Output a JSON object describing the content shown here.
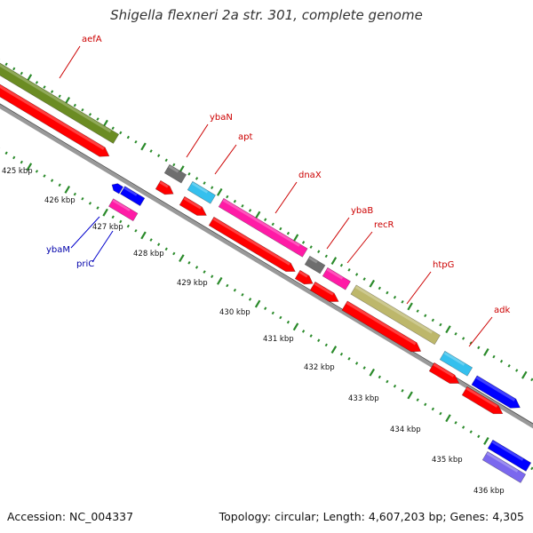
{
  "title": "Shigella flexneri 2a str. 301, complete genome",
  "footer": {
    "accession": "Accession: NC_004337",
    "summary": "Topology: circular; Length: 4,607,203 bp; Genes: 4,305"
  },
  "colors": {
    "backbone": "#999999",
    "tick": "#2a8a2a",
    "red": "#ff0000",
    "olive": "#6b8c23",
    "gray": "#6e6e6e",
    "cyan": "#35c0ee",
    "magenta": "#ff1ba6",
    "khaki": "#bdb76b",
    "blue": "#0000ff",
    "slate": "#7b68ee",
    "label_forward": "#cc0000",
    "label_reverse": "#0000aa"
  },
  "kbp_labels": [
    {
      "kbp": 425,
      "text": "425 kbp"
    },
    {
      "kbp": 426,
      "text": "426 kbp"
    },
    {
      "kbp": 427,
      "text": "427 kbp"
    },
    {
      "kbp": 428,
      "text": "428 kbp"
    },
    {
      "kbp": 429,
      "text": "429 kbp"
    },
    {
      "kbp": 430,
      "text": "430 kbp"
    },
    {
      "kbp": 431,
      "text": "431 kbp"
    },
    {
      "kbp": 432,
      "text": "432 kbp"
    },
    {
      "kbp": 433,
      "text": "433 kbp"
    },
    {
      "kbp": 434,
      "text": "434 kbp"
    },
    {
      "kbp": 435,
      "text": "435 kbp"
    },
    {
      "kbp": 436,
      "text": "436 kbp"
    }
  ],
  "genes": [
    {
      "name": "aefA",
      "strand": "forward",
      "color": "olive"
    },
    {
      "name": "ybaN",
      "strand": "forward",
      "color": "gray"
    },
    {
      "name": "apt",
      "strand": "forward",
      "color": "cyan"
    },
    {
      "name": "dnaX",
      "strand": "forward",
      "color": "magenta"
    },
    {
      "name": "ybaB",
      "strand": "forward",
      "color": "gray"
    },
    {
      "name": "recR",
      "strand": "forward",
      "color": "magenta"
    },
    {
      "name": "htpG",
      "strand": "forward",
      "color": "khaki"
    },
    {
      "name": "adk",
      "strand": "forward",
      "color": "cyan"
    },
    {
      "name": "ybaM",
      "strand": "reverse",
      "color": "blue"
    },
    {
      "name": "priC",
      "strand": "reverse",
      "color": "magenta"
    }
  ]
}
